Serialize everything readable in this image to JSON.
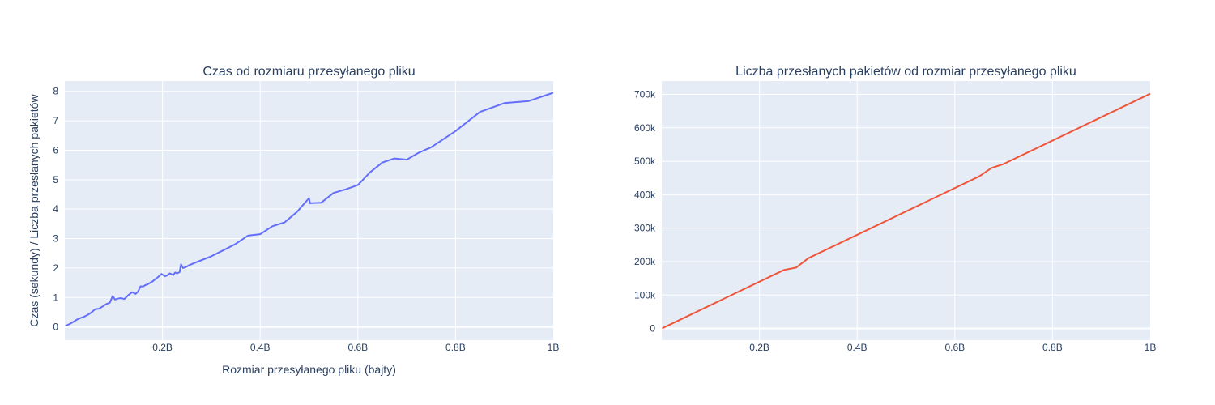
{
  "chart_data": [
    {
      "type": "line",
      "title": "Czas od rozmiaru przesyłanego pliku",
      "xlabel": "Rozmiar przesyłanego pliku (bajty)",
      "ylabel": "Czas (sekundy) / Liczba przesłanych pakietów",
      "xlim": [
        0,
        1000000000
      ],
      "ylim": [
        -0.45,
        8.35
      ],
      "x_ticks": [
        {
          "value": 200000000,
          "label": "0.2B"
        },
        {
          "value": 400000000,
          "label": "0.4B"
        },
        {
          "value": 600000000,
          "label": "0.6B"
        },
        {
          "value": 800000000,
          "label": "0.8B"
        },
        {
          "value": 1000000000,
          "label": "1B"
        }
      ],
      "y_ticks": [
        {
          "value": 0,
          "label": "0"
        },
        {
          "value": 1,
          "label": "1"
        },
        {
          "value": 2,
          "label": "2"
        },
        {
          "value": 3,
          "label": "3"
        },
        {
          "value": 4,
          "label": "4"
        },
        {
          "value": 5,
          "label": "5"
        },
        {
          "value": 6,
          "label": "6"
        },
        {
          "value": 7,
          "label": "7"
        },
        {
          "value": 8,
          "label": "8"
        }
      ],
      "color": "#636efa",
      "series": [
        {
          "x": [
            1000000,
            10000000,
            18000000,
            25000000,
            32000000,
            40000000,
            48000000,
            55000000,
            62000000,
            70000000,
            78000000,
            85000000,
            92000000,
            98000000,
            103000000,
            108000000,
            115000000,
            122000000,
            130000000,
            138000000,
            145000000,
            150000000,
            155000000,
            160000000,
            165000000,
            170000000,
            180000000,
            185000000,
            190000000,
            198000000,
            205000000,
            210000000,
            215000000,
            222000000,
            226000000,
            230000000,
            235000000,
            238000000,
            242000000,
            248000000,
            255000000,
            270000000,
            300000000,
            330000000,
            350000000,
            375000000,
            400000000,
            425000000,
            450000000,
            475000000,
            500000000,
            502000000,
            525000000,
            550000000,
            575000000,
            600000000,
            625000000,
            650000000,
            675000000,
            700000000,
            725000000,
            750000000,
            800000000,
            850000000,
            900000000,
            950000000,
            1000000000
          ],
          "y": [
            0.03,
            0.1,
            0.18,
            0.25,
            0.3,
            0.35,
            0.42,
            0.5,
            0.6,
            0.62,
            0.7,
            0.78,
            0.82,
            1.05,
            0.93,
            0.96,
            0.98,
            0.95,
            1.08,
            1.18,
            1.12,
            1.2,
            1.38,
            1.37,
            1.42,
            1.45,
            1.55,
            1.62,
            1.68,
            1.8,
            1.72,
            1.75,
            1.82,
            1.76,
            1.85,
            1.82,
            1.86,
            2.13,
            2.0,
            2.03,
            2.1,
            2.2,
            2.4,
            2.65,
            2.82,
            3.1,
            3.15,
            3.42,
            3.55,
            3.9,
            4.37,
            4.2,
            4.22,
            4.55,
            4.67,
            4.82,
            5.25,
            5.58,
            5.72,
            5.68,
            5.92,
            6.1,
            6.65,
            7.3,
            7.6,
            7.67,
            7.95
          ]
        }
      ]
    },
    {
      "type": "line",
      "title": "Liczba przesłanych pakietów od rozmiar przesyłanego pliku",
      "xlabel": "",
      "ylabel": "",
      "xlim": [
        0,
        1000000000
      ],
      "ylim": [
        -35000,
        740000
      ],
      "x_ticks": [
        {
          "value": 200000000,
          "label": "0.2B"
        },
        {
          "value": 400000000,
          "label": "0.4B"
        },
        {
          "value": 600000000,
          "label": "0.6B"
        },
        {
          "value": 800000000,
          "label": "0.8B"
        },
        {
          "value": 1000000000,
          "label": "1B"
        }
      ],
      "y_ticks": [
        {
          "value": 0,
          "label": "0"
        },
        {
          "value": 100000,
          "label": "100k"
        },
        {
          "value": 200000,
          "label": "200k"
        },
        {
          "value": 300000,
          "label": "300k"
        },
        {
          "value": 400000,
          "label": "400k"
        },
        {
          "value": 500000,
          "label": "500k"
        },
        {
          "value": 600000,
          "label": "600k"
        },
        {
          "value": 700000,
          "label": "700k"
        }
      ],
      "color": "#ef553b",
      "series": [
        {
          "x": [
            1000000,
            250000000,
            275000000,
            300000000,
            650000000,
            675000000,
            700000000,
            1000000000
          ],
          "y": [
            700,
            175000,
            182000,
            210000,
            455000,
            480000,
            492000,
            702000
          ]
        }
      ]
    }
  ],
  "colors": {
    "plot_bg": "#e5ecf6",
    "grid": "#ffffff",
    "text": "#2a3f5f"
  }
}
